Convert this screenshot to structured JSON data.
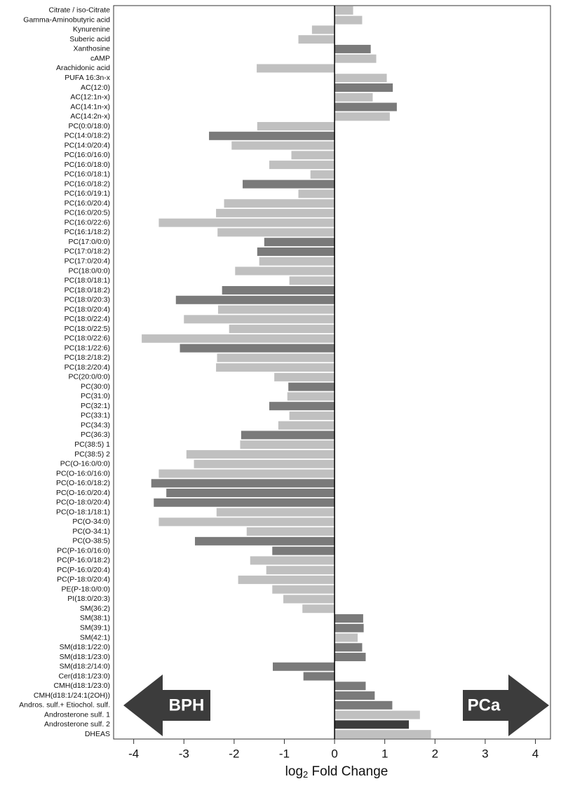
{
  "chart_data": {
    "type": "barh",
    "categories": [
      "Citrate / iso-Citrate",
      "Gamma-Aminobutyric acid",
      "Kynurenine",
      "Suberic acid",
      "Xanthosine",
      "cAMP",
      "Arachidonic acid",
      "PUFA 16:3n-x",
      "AC(12:0)",
      "AC(12:1n-x)",
      "AC(14:1n-x)",
      "AC(14:2n-x)",
      "PC(0:0/18:0)",
      "PC(14:0/18:2)",
      "PC(14:0/20:4)",
      "PC(16:0/16:0)",
      "PC(16:0/18:0)",
      "PC(16:0/18:1)",
      "PC(16:0/18:2)",
      "PC(16:0/19:1)",
      "PC(16:0/20:4)",
      "PC(16:0/20:5)",
      "PC(16:0/22:6)",
      "PC(16:1/18:2)",
      "PC(17:0/0:0)",
      "PC(17:0/18:2)",
      "PC(17:0/20:4)",
      "PC(18:0/0:0)",
      "PC(18:0/18:1)",
      "PC(18:0/18:2)",
      "PC(18:0/20:3)",
      "PC(18:0/20:4)",
      "PC(18:0/22:4)",
      "PC(18:0/22:5)",
      "PC(18:0/22:6)",
      "PC(18:1/22:6)",
      "PC(18:2/18:2)",
      "PC(18:2/20:4)",
      "PC(20:0/0:0)",
      "PC(30:0)",
      "PC(31:0)",
      "PC(32:1)",
      "PC(33:1)",
      "PC(34:3)",
      "PC(36:3)",
      "PC(38:5) 1",
      "PC(38:5) 2",
      "PC(O-16:0/0:0)",
      "PC(O-16:0/16:0)",
      "PC(O-16:0/18:2)",
      "PC(O-16:0/20:4)",
      "PC(O-18:0/20:4)",
      "PC(O-18:1/18:1)",
      "PC(O-34:0)",
      "PC(O-34:1)",
      "PC(O-38:5)",
      "PC(P-16:0/16:0)",
      "PC(P-16:0/18:2)",
      "PC(P-16:0/20:4)",
      "PC(P-18:0/20:4)",
      "PE(P-18:0/0:0)",
      "PI(18:0/20:3)",
      "SM(36:2)",
      "SM(38:1)",
      "SM(39:1)",
      "SM(42:1)",
      "SM(d18:1/22:0)",
      "SM(d18:1/23:0)",
      "SM(d18:2/14:0)",
      "Cer(d18:1/23:0)",
      "CMH(d18:1/23:0)",
      "CMH(d18:1/24:1(2OH))",
      "Andros. sulf.+ Etiochol. sulf.",
      "Androsterone sulf. 1",
      "Androsterone sulf. 2",
      "DHEAS"
    ],
    "values": [
      0.37,
      0.55,
      -0.45,
      -0.72,
      0.72,
      0.83,
      -1.55,
      1.04,
      1.16,
      0.76,
      1.24,
      1.1,
      -1.54,
      -2.5,
      -2.05,
      -0.86,
      -1.3,
      -0.48,
      -1.83,
      -0.72,
      -2.2,
      -2.36,
      -3.5,
      -2.33,
      -1.4,
      -1.54,
      -1.5,
      -1.98,
      -0.9,
      -2.24,
      -3.16,
      -2.32,
      -3.0,
      -2.1,
      -3.84,
      -3.08,
      -2.34,
      -2.36,
      -1.2,
      -0.92,
      -0.94,
      -1.3,
      -0.9,
      -1.12,
      -1.86,
      -1.88,
      -2.95,
      -2.8,
      -3.5,
      -3.65,
      -3.35,
      -3.6,
      -2.35,
      -3.5,
      -1.75,
      -2.78,
      -1.24,
      -1.68,
      -1.36,
      -1.92,
      -1.24,
      -1.02,
      -0.64,
      0.57,
      0.58,
      0.46,
      0.55,
      0.62,
      -1.23,
      -0.62,
      0.62,
      0.8,
      1.15,
      1.7,
      1.48,
      1.92
    ],
    "colors": [
      "#c0c0c0",
      "#c0c0c0",
      "#c0c0c0",
      "#c0c0c0",
      "#7a7a7a",
      "#c0c0c0",
      "#c0c0c0",
      "#c0c0c0",
      "#7a7a7a",
      "#c0c0c0",
      "#7a7a7a",
      "#c0c0c0",
      "#c0c0c0",
      "#7a7a7a",
      "#c0c0c0",
      "#c0c0c0",
      "#c0c0c0",
      "#c0c0c0",
      "#7a7a7a",
      "#c0c0c0",
      "#c0c0c0",
      "#c0c0c0",
      "#c0c0c0",
      "#c0c0c0",
      "#7a7a7a",
      "#7a7a7a",
      "#c0c0c0",
      "#c0c0c0",
      "#c0c0c0",
      "#7a7a7a",
      "#7a7a7a",
      "#c0c0c0",
      "#c0c0c0",
      "#c0c0c0",
      "#c0c0c0",
      "#7a7a7a",
      "#c0c0c0",
      "#c0c0c0",
      "#c0c0c0",
      "#7a7a7a",
      "#c0c0c0",
      "#7a7a7a",
      "#c0c0c0",
      "#c0c0c0",
      "#7a7a7a",
      "#c0c0c0",
      "#c0c0c0",
      "#c0c0c0",
      "#c0c0c0",
      "#7a7a7a",
      "#7a7a7a",
      "#7a7a7a",
      "#c0c0c0",
      "#c0c0c0",
      "#c0c0c0",
      "#7a7a7a",
      "#7a7a7a",
      "#c0c0c0",
      "#c0c0c0",
      "#c0c0c0",
      "#c0c0c0",
      "#c0c0c0",
      "#c0c0c0",
      "#7a7a7a",
      "#7a7a7a",
      "#c0c0c0",
      "#7a7a7a",
      "#7a7a7a",
      "#7a7a7a",
      "#7a7a7a",
      "#7a7a7a",
      "#7a7a7a",
      "#7a7a7a",
      "#c0c0c0",
      "#3c3c3c",
      "#c0c0c0"
    ],
    "xlim": [
      -4.4,
      4.3
    ],
    "xticks": [
      -4,
      -3,
      -2,
      -1,
      0,
      1,
      2,
      3,
      4
    ],
    "x_label": [
      "log",
      "2",
      " Fold Change"
    ],
    "annotations": [
      "BPH",
      "PCa"
    ]
  }
}
